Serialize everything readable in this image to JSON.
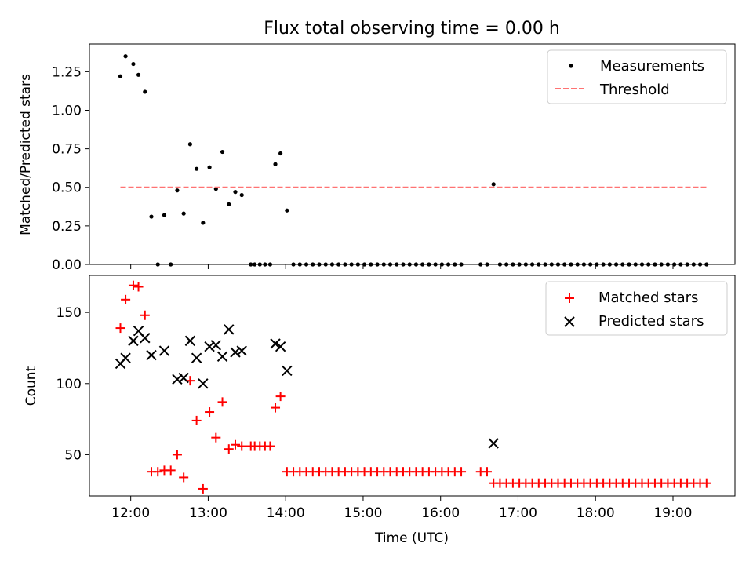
{
  "figure": {
    "title": "Flux total observing time = 0.00 h",
    "xlabel": "Time (UTC)",
    "xticks": [
      "12:00",
      "13:00",
      "14:00",
      "15:00",
      "16:00",
      "17:00",
      "18:00",
      "19:00"
    ]
  },
  "chart_data": [
    {
      "type": "scatter",
      "title": "Flux total observing time = 0.00 h",
      "xlabel": "Time (UTC)",
      "ylabel": "Matched/Predicted stars",
      "xlim": [
        "11:28",
        "19:48"
      ],
      "ylim": [
        0,
        1.43
      ],
      "yticks": [
        "0.00",
        "0.25",
        "0.50",
        "0.75",
        "1.00",
        "1.25"
      ],
      "legend": {
        "placement": "top-right",
        "entries": [
          "Measurements",
          "Threshold"
        ]
      },
      "series": [
        {
          "name": "Measurements",
          "marker": "dot",
          "color": "#000000",
          "points": [
            [
              "11:52",
              1.22
            ],
            [
              "11:56",
              1.35
            ],
            [
              "12:02",
              1.3
            ],
            [
              "12:06",
              1.23
            ],
            [
              "12:11",
              1.12
            ],
            [
              "12:16",
              0.31
            ],
            [
              "12:21",
              0.0
            ],
            [
              "12:26",
              0.32
            ],
            [
              "12:31",
              0.0
            ],
            [
              "12:36",
              0.48
            ],
            [
              "12:41",
              0.33
            ],
            [
              "12:46",
              0.78
            ],
            [
              "12:51",
              0.62
            ],
            [
              "12:56",
              0.27
            ],
            [
              "13:01",
              0.63
            ],
            [
              "13:06",
              0.49
            ],
            [
              "13:11",
              0.73
            ],
            [
              "13:16",
              0.39
            ],
            [
              "13:21",
              0.47
            ],
            [
              "13:26",
              0.45
            ],
            [
              "13:33",
              0.0
            ],
            [
              "13:36",
              0.0
            ],
            [
              "13:40",
              0.0
            ],
            [
              "13:44",
              0.0
            ],
            [
              "13:48",
              0.0
            ],
            [
              "13:52",
              0.65
            ],
            [
              "13:56",
              0.72
            ],
            [
              "14:01",
              0.35
            ],
            [
              "14:06",
              0.0
            ],
            [
              "14:11",
              0.0
            ],
            [
              "14:16",
              0.0
            ],
            [
              "14:21",
              0.0
            ],
            [
              "14:26",
              0.0
            ],
            [
              "14:31",
              0.0
            ],
            [
              "14:36",
              0.0
            ],
            [
              "14:41",
              0.0
            ],
            [
              "14:46",
              0.0
            ],
            [
              "14:51",
              0.0
            ],
            [
              "14:56",
              0.0
            ],
            [
              "15:01",
              0.0
            ],
            [
              "15:06",
              0.0
            ],
            [
              "15:11",
              0.0
            ],
            [
              "15:16",
              0.0
            ],
            [
              "15:21",
              0.0
            ],
            [
              "15:26",
              0.0
            ],
            [
              "15:31",
              0.0
            ],
            [
              "15:36",
              0.0
            ],
            [
              "15:41",
              0.0
            ],
            [
              "15:46",
              0.0
            ],
            [
              "15:51",
              0.0
            ],
            [
              "15:56",
              0.0
            ],
            [
              "16:01",
              0.0
            ],
            [
              "16:06",
              0.0
            ],
            [
              "16:11",
              0.0
            ],
            [
              "16:16",
              0.0
            ],
            [
              "16:31",
              0.0
            ],
            [
              "16:36",
              0.0
            ],
            [
              "16:41",
              0.52
            ],
            [
              "16:46",
              0.0
            ],
            [
              "16:51",
              0.0
            ],
            [
              "16:56",
              0.0
            ],
            [
              "17:01",
              0.0
            ],
            [
              "17:06",
              0.0
            ],
            [
              "17:11",
              0.0
            ],
            [
              "17:16",
              0.0
            ],
            [
              "17:21",
              0.0
            ],
            [
              "17:26",
              0.0
            ],
            [
              "17:31",
              0.0
            ],
            [
              "17:36",
              0.0
            ],
            [
              "17:41",
              0.0
            ],
            [
              "17:46",
              0.0
            ],
            [
              "17:51",
              0.0
            ],
            [
              "17:56",
              0.0
            ],
            [
              "18:01",
              0.0
            ],
            [
              "18:06",
              0.0
            ],
            [
              "18:11",
              0.0
            ],
            [
              "18:16",
              0.0
            ],
            [
              "18:21",
              0.0
            ],
            [
              "18:26",
              0.0
            ],
            [
              "18:31",
              0.0
            ],
            [
              "18:36",
              0.0
            ],
            [
              "18:41",
              0.0
            ],
            [
              "18:46",
              0.0
            ],
            [
              "18:51",
              0.0
            ],
            [
              "18:56",
              0.0
            ],
            [
              "19:01",
              0.0
            ],
            [
              "19:06",
              0.0
            ],
            [
              "19:11",
              0.0
            ],
            [
              "19:16",
              0.0
            ],
            [
              "19:21",
              0.0
            ],
            [
              "19:26",
              0.0
            ]
          ]
        },
        {
          "name": "Threshold",
          "kind": "dashed-line",
          "color": "#ff7373",
          "points": [
            [
              "11:52",
              0.5
            ],
            [
              "19:26",
              0.5
            ]
          ]
        }
      ]
    },
    {
      "type": "scatter",
      "xlabel": "Time (UTC)",
      "ylabel": "Count",
      "xlim": [
        "11:28",
        "19:48"
      ],
      "ylim": [
        21,
        176
      ],
      "yticks": [
        "50",
        "100",
        "150"
      ],
      "legend": {
        "placement": "top-right",
        "entries": [
          "Matched stars",
          "Predicted stars"
        ]
      },
      "series": [
        {
          "name": "Matched stars",
          "marker": "plus",
          "color": "#ff0000",
          "points": [
            [
              "11:52",
              139
            ],
            [
              "11:56",
              159
            ],
            [
              "12:02",
              169
            ],
            [
              "12:06",
              168
            ],
            [
              "12:11",
              148
            ],
            [
              "12:16",
              38
            ],
            [
              "12:21",
              38
            ],
            [
              "12:26",
              39
            ],
            [
              "12:31",
              39
            ],
            [
              "12:36",
              50
            ],
            [
              "12:41",
              34
            ],
            [
              "12:46",
              102
            ],
            [
              "12:51",
              74
            ],
            [
              "12:56",
              26
            ],
            [
              "13:01",
              80
            ],
            [
              "13:06",
              62
            ],
            [
              "13:11",
              87
            ],
            [
              "13:16",
              54
            ],
            [
              "13:21",
              57
            ],
            [
              "13:26",
              56
            ],
            [
              "13:33",
              56
            ],
            [
              "13:36",
              56
            ],
            [
              "13:40",
              56
            ],
            [
              "13:44",
              56
            ],
            [
              "13:48",
              56
            ],
            [
              "13:52",
              83
            ],
            [
              "13:56",
              91
            ],
            [
              "14:01",
              38
            ],
            [
              "14:06",
              38
            ],
            [
              "14:11",
              38
            ],
            [
              "14:16",
              38
            ],
            [
              "14:21",
              38
            ],
            [
              "14:26",
              38
            ],
            [
              "14:31",
              38
            ],
            [
              "14:36",
              38
            ],
            [
              "14:41",
              38
            ],
            [
              "14:46",
              38
            ],
            [
              "14:51",
              38
            ],
            [
              "14:56",
              38
            ],
            [
              "15:01",
              38
            ],
            [
              "15:06",
              38
            ],
            [
              "15:11",
              38
            ],
            [
              "15:16",
              38
            ],
            [
              "15:21",
              38
            ],
            [
              "15:26",
              38
            ],
            [
              "15:31",
              38
            ],
            [
              "15:36",
              38
            ],
            [
              "15:41",
              38
            ],
            [
              "15:46",
              38
            ],
            [
              "15:51",
              38
            ],
            [
              "15:56",
              38
            ],
            [
              "16:01",
              38
            ],
            [
              "16:06",
              38
            ],
            [
              "16:11",
              38
            ],
            [
              "16:16",
              38
            ],
            [
              "16:31",
              38
            ],
            [
              "16:36",
              38
            ],
            [
              "16:41",
              30
            ],
            [
              "16:46",
              30
            ],
            [
              "16:51",
              30
            ],
            [
              "16:56",
              30
            ],
            [
              "17:01",
              30
            ],
            [
              "17:06",
              30
            ],
            [
              "17:11",
              30
            ],
            [
              "17:16",
              30
            ],
            [
              "17:21",
              30
            ],
            [
              "17:26",
              30
            ],
            [
              "17:31",
              30
            ],
            [
              "17:36",
              30
            ],
            [
              "17:41",
              30
            ],
            [
              "17:46",
              30
            ],
            [
              "17:51",
              30
            ],
            [
              "17:56",
              30
            ],
            [
              "18:01",
              30
            ],
            [
              "18:06",
              30
            ],
            [
              "18:11",
              30
            ],
            [
              "18:16",
              30
            ],
            [
              "18:21",
              30
            ],
            [
              "18:26",
              30
            ],
            [
              "18:31",
              30
            ],
            [
              "18:36",
              30
            ],
            [
              "18:41",
              30
            ],
            [
              "18:46",
              30
            ],
            [
              "18:51",
              30
            ],
            [
              "18:56",
              30
            ],
            [
              "19:01",
              30
            ],
            [
              "19:06",
              30
            ],
            [
              "19:11",
              30
            ],
            [
              "19:16",
              30
            ],
            [
              "19:21",
              30
            ],
            [
              "19:26",
              30
            ]
          ]
        },
        {
          "name": "Predicted stars",
          "marker": "x",
          "color": "#000000",
          "points": [
            [
              "11:52",
              114
            ],
            [
              "11:56",
              118
            ],
            [
              "12:02",
              130
            ],
            [
              "12:06",
              137
            ],
            [
              "12:11",
              132
            ],
            [
              "12:16",
              120
            ],
            [
              "12:26",
              123
            ],
            [
              "12:36",
              103
            ],
            [
              "12:41",
              104
            ],
            [
              "12:46",
              130
            ],
            [
              "12:51",
              118
            ],
            [
              "12:56",
              100
            ],
            [
              "13:01",
              126
            ],
            [
              "13:06",
              127
            ],
            [
              "13:11",
              119
            ],
            [
              "13:16",
              138
            ],
            [
              "13:21",
              122
            ],
            [
              "13:26",
              123
            ],
            [
              "13:52",
              128
            ],
            [
              "13:56",
              126
            ],
            [
              "14:01",
              109
            ],
            [
              "16:41",
              58
            ]
          ]
        }
      ]
    }
  ]
}
